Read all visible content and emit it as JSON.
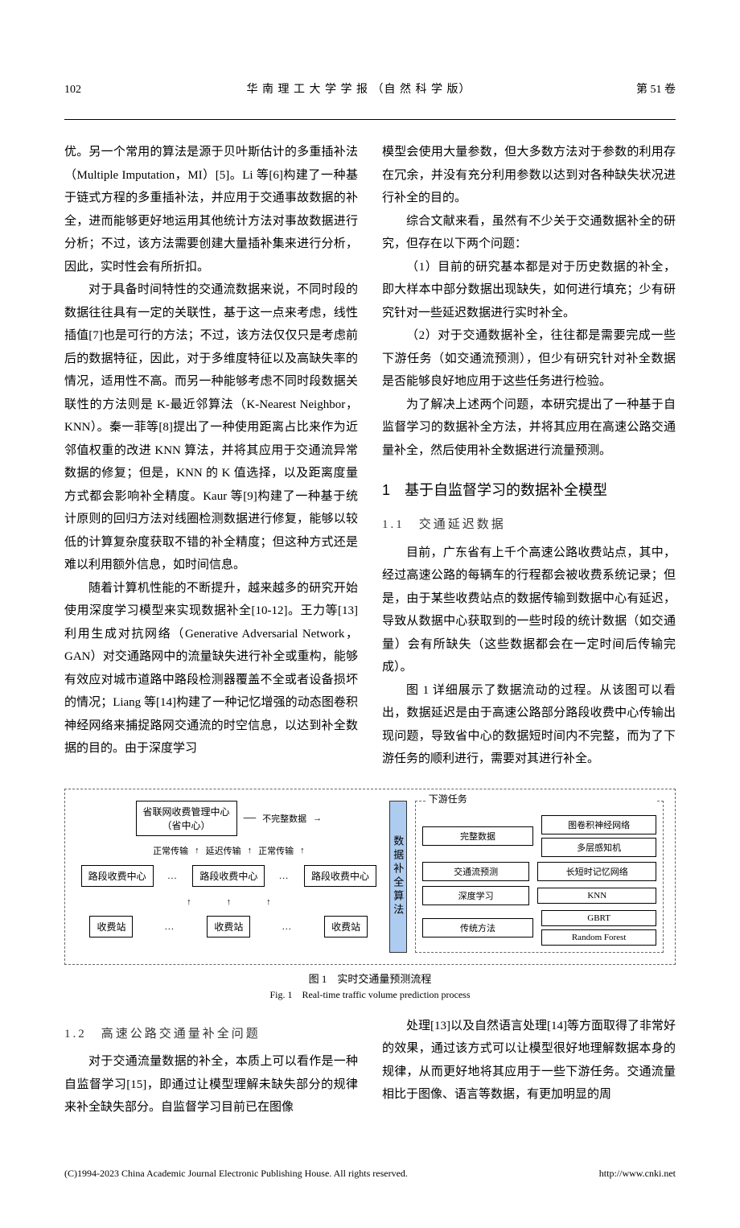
{
  "header": {
    "page_number": "102",
    "journal": "华 南 理 工 大 学 学 报 （自 然 科 学 版）",
    "volume": "第 51 卷"
  },
  "left_column": {
    "p1": "优。另一个常用的算法是源于贝叶斯估计的多重插补法（Multiple Imputation，MI）[5]。Li 等[6]构建了一种基于链式方程的多重插补法，并应用于交通事故数据的补全，进而能够更好地运用其他统计方法对事故数据进行分析；不过，该方法需要创建大量插补集来进行分析，因此，实时性会有所折扣。",
    "p2": "对于具备时间特性的交通流数据来说，不同时段的数据往往具有一定的关联性，基于这一点来考虑，线性插值[7]也是可行的方法；不过，该方法仅仅只是考虑前后的数据特征，因此，对于多维度特征以及高缺失率的情况，适用性不高。而另一种能够考虑不同时段数据关联性的方法则是 K-最近邻算法（K-Nearest Neighbor，KNN）。秦一菲等[8]提出了一种使用距离占比来作为近邻值权重的改进 KNN 算法，并将其应用于交通流异常数据的修复；但是，KNN 的 K 值选择，以及距离度量方式都会影响补全精度。Kaur 等[9]构建了一种基于统计原则的回归方法对线圈检测数据进行修复，能够以较低的计算复杂度获取不错的补全精度；但这种方式还是难以利用额外信息，如时间信息。",
    "p3": "随着计算机性能的不断提升，越来越多的研究开始使用深度学习模型来实现数据补全[10-12]。王力等[13]利用生成对抗网络（Generative Adversarial Network，GAN）对交通路网中的流量缺失进行补全或重构，能够有效应对城市道路中路段检测器覆盖不全或者设备损坏的情况；Liang 等[14]构建了一种记忆增强的动态图卷积神经网络来捕捉路网交通流的时空信息，以达到补全数据的目的。由于深度学习"
  },
  "right_column": {
    "p1": "模型会使用大量参数，但大多数方法对于参数的利用存在冗余，并没有充分利用参数以达到对各种缺失状况进行补全的目的。",
    "p2": "综合文献来看，虽然有不少关于交通数据补全的研究，但存在以下两个问题：",
    "p3": "（1）目前的研究基本都是对于历史数据的补全，即大样本中部分数据出现缺失，如何进行填充；少有研究针对一些延迟数据进行实时补全。",
    "p4": "（2）对于交通数据补全，往往都是需要完成一些下游任务（如交通流预测），但少有研究针对补全数据是否能够良好地应用于这些任务进行检验。",
    "p5": "为了解决上述两个问题，本研究提出了一种基于自监督学习的数据补全方法，并将其应用在高速公路交通量补全，然后使用补全数据进行流量预测。",
    "section1_title": "1　基于自监督学习的数据补全模型",
    "sub11_title": "1.1　交通延迟数据",
    "p6": "目前，广东省有上千个高速公路收费站点，其中，经过高速公路的每辆车的行程都会被收费系统记录；但是，由于某些收费站点的数据传输到数据中心有延迟，导致从数据中心获取到的一些时段的统计数据（如交通量）会有所缺失（这些数据都会在一定时间后传输完成）。",
    "p7": "图 1 详细展示了数据流动的过程。从该图可以看出，数据延迟是由于高速公路部分路段收费中心传输出现问题，导致省中心的数据短时间内不完整，而为了下游任务的顺利进行，需要对其进行补全。"
  },
  "figure": {
    "left": {
      "province_center": [
        "省联网收费管理中心",
        "（省中心）"
      ],
      "normal_transfer": "正常传输",
      "delayed_transfer": "延迟传输",
      "segment_node": "路段收费中心",
      "toll_node": "收费站",
      "dots": "…",
      "incomplete_data": "不完整数据"
    },
    "mid": "数据补全算法",
    "right": {
      "downstream": "下游任务",
      "complete_data": "完整数据",
      "traffic_pred": "交通流预测",
      "deep_learning": "深度学习",
      "traditional": "传统方法",
      "gcn": "图卷积神经网络",
      "mlp": "多层感知机",
      "lstm": "长短时记忆网络",
      "knn": "KNN",
      "gbrt": "GBRT",
      "rf": "Random Forest"
    },
    "caption_cn": "图 1　实时交通量预测流程",
    "caption_en": "Fig. 1　Real-time traffic volume prediction process"
  },
  "bottom": {
    "sub12_title": "1.2　高速公路交通量补全问题",
    "left_p": "对于交通流量数据的补全，本质上可以看作是一种自监督学习[15]，即通过让模型理解未缺失部分的规律来补全缺失部分。自监督学习目前已在图像",
    "right_p": "处理[13]以及自然语言处理[14]等方面取得了非常好的效果，通过该方式可以让模型很好地理解数据本身的规律，从而更好地将其应用于一些下游任务。交通流量相比于图像、语言等数据，有更加明显的周"
  },
  "footer": {
    "copyright": "(C)1994-2023 China Academic Journal Electronic Publishing House. All rights reserved.",
    "url": "http://www.cnki.net"
  }
}
